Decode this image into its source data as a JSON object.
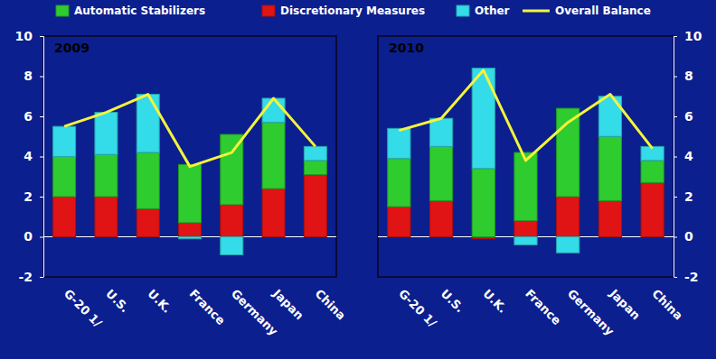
{
  "chart_data": [
    {
      "type": "bar",
      "title": "2009",
      "stacked": true,
      "categories": [
        "G-20 1/",
        "U.S.",
        "U.K.",
        "France",
        "Germany",
        "Japan",
        "China"
      ],
      "ylim": [
        -2,
        10
      ],
      "yticks": [
        -2,
        0,
        2,
        4,
        6,
        8,
        10
      ],
      "series": [
        {
          "name": "Automatic Stabilizers",
          "color": "#2fcc2f",
          "values": [
            2.0,
            2.1,
            2.8,
            2.9,
            3.5,
            3.3,
            0.7
          ]
        },
        {
          "name": "Discretionary Measures",
          "color": "#e01414",
          "values": [
            2.0,
            2.0,
            1.4,
            0.7,
            1.6,
            2.4,
            3.1
          ]
        },
        {
          "name": "Other",
          "color": "#34dbe8",
          "values": [
            1.5,
            2.1,
            2.9,
            -0.1,
            -0.9,
            1.2,
            0.7
          ]
        },
        {
          "name": "Overall Balance",
          "type": "line",
          "color": "#f4f43a",
          "values": [
            5.5,
            6.2,
            7.1,
            3.5,
            4.2,
            6.9,
            4.5
          ]
        }
      ]
    },
    {
      "type": "bar",
      "title": "2010",
      "stacked": true,
      "categories": [
        "G-20 1/",
        "U.S.",
        "U.K.",
        "France",
        "Germany",
        "Japan",
        "China"
      ],
      "ylim": [
        -2,
        10
      ],
      "yticks": [
        -2,
        0,
        2,
        4,
        6,
        8,
        10
      ],
      "series": [
        {
          "color": "#2fcc2f",
          "values": [
            2.4,
            2.7,
            3.4,
            3.4,
            4.4,
            3.2,
            1.1
          ]
        },
        {
          "color": "#e01414",
          "values": [
            1.5,
            1.8,
            -0.1,
            0.8,
            2.0,
            1.8,
            2.7
          ]
        },
        {
          "color": "#34dbe8",
          "values": [
            1.5,
            1.4,
            5.0,
            -0.4,
            -0.8,
            2.0,
            0.7
          ]
        },
        {
          "type": "line",
          "color": "#f4f43a",
          "values": [
            5.3,
            5.9,
            8.3,
            3.8,
            5.7,
            7.1,
            4.4
          ]
        }
      ]
    }
  ]
}
